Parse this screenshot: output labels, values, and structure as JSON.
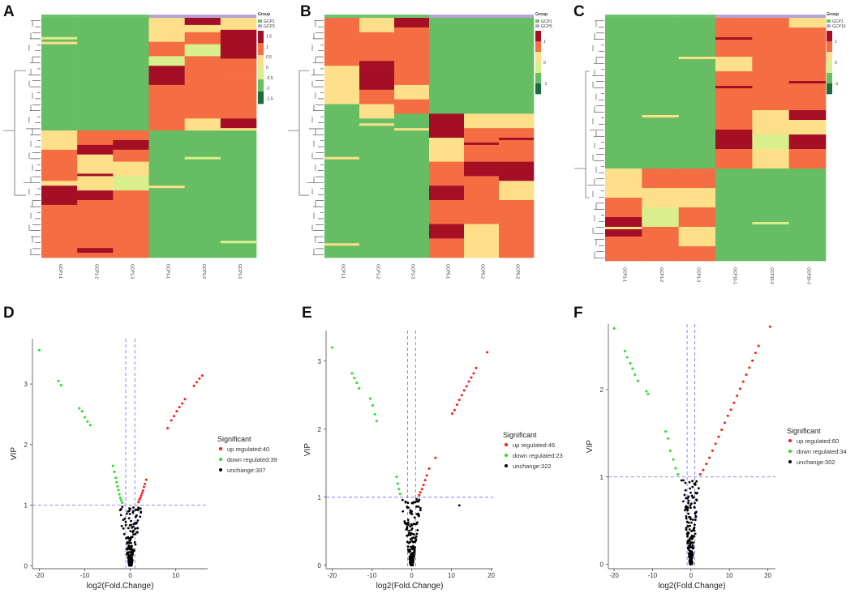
{
  "colors": {
    "up": "#ff1a1a",
    "down": "#22e022",
    "unchange": "#000000",
    "heat_high": "#a50f26",
    "heat_mid_high": "#f46d43",
    "heat_mid": "#fee08b",
    "heat_low_mid": "#d9ef8b",
    "heat_low": "#66bd63",
    "heat_lowest": "#1a6d3a",
    "group_a": "#6cc46c",
    "group_b": "#b8a4d4",
    "guide": "#6b6bff"
  },
  "chart_data": [
    {
      "panel": "A",
      "type": "heatmap",
      "columns": [
        "GCP1-1",
        "GCP1-2",
        "GCP1-3",
        "GCP3-1",
        "GCP3-2",
        "GCP3-3"
      ],
      "legend_title": "Group",
      "groups": [
        "GCP1",
        "GCP3"
      ],
      "scale_ticks": [
        "1.5",
        "1",
        "0.5",
        "0",
        "-0.5",
        "-1",
        "-1.5"
      ]
    },
    {
      "panel": "B",
      "type": "heatmap",
      "columns": [
        "GCP1-1",
        "GCP1-2",
        "GCP1-3",
        "GCP5-1",
        "GCP5-2",
        "GCP5-3"
      ],
      "legend_title": "Group",
      "groups": [
        "GCP1",
        "GCP5"
      ],
      "scale_ticks": [
        "1",
        "0",
        "-1"
      ]
    },
    {
      "panel": "C",
      "type": "heatmap",
      "columns": [
        "GCP1-1",
        "GCP1-2",
        "GCP1-3",
        "GCP10-1",
        "GCP10-2",
        "GCP10-3"
      ],
      "legend_title": "Group",
      "groups": [
        "GCP1",
        "GCP10"
      ],
      "scale_ticks": [
        "1",
        "0",
        "-1"
      ]
    },
    {
      "panel": "D",
      "type": "scatter",
      "xlabel": "log2(Fold.Change)",
      "ylabel": "VIP",
      "xlim": [
        -21.5,
        17
      ],
      "ylim": [
        -0.05,
        3.75
      ],
      "xticks": [
        -20,
        -10,
        0,
        10
      ],
      "yticks": [
        0,
        1,
        2,
        3
      ],
      "vlines": [
        -1,
        1
      ],
      "hline": 1,
      "legend_title": "Significant",
      "legend": [
        "up regulated:40",
        "down regulated:39",
        "unchange:307"
      ],
      "series": [
        {
          "name": "up regulated",
          "points": [
            [
              8.2,
              2.27
            ],
            [
              9.0,
              2.4
            ],
            [
              9.6,
              2.47
            ],
            [
              10.2,
              2.55
            ],
            [
              10.8,
              2.62
            ],
            [
              11.4,
              2.68
            ],
            [
              12.0,
              2.75
            ],
            [
              14.0,
              2.97
            ],
            [
              14.6,
              3.03
            ],
            [
              15.2,
              3.09
            ],
            [
              15.8,
              3.14
            ],
            [
              3.5,
              1.42
            ],
            [
              3.2,
              1.35
            ],
            [
              3.0,
              1.3
            ],
            [
              2.8,
              1.24
            ],
            [
              2.6,
              1.2
            ],
            [
              2.4,
              1.16
            ],
            [
              2.2,
              1.12
            ],
            [
              2.0,
              1.09
            ],
            [
              1.8,
              1.05
            ]
          ]
        },
        {
          "name": "down regulated",
          "points": [
            [
              -20.0,
              3.56
            ],
            [
              -15.8,
              3.05
            ],
            [
              -15.2,
              2.98
            ],
            [
              -11.2,
              2.6
            ],
            [
              -10.6,
              2.55
            ],
            [
              -10.0,
              2.45
            ],
            [
              -9.4,
              2.38
            ],
            [
              -8.8,
              2.32
            ],
            [
              -3.8,
              1.65
            ],
            [
              -3.5,
              1.55
            ],
            [
              -3.2,
              1.45
            ],
            [
              -3.0,
              1.38
            ],
            [
              -2.8,
              1.31
            ],
            [
              -2.6,
              1.25
            ],
            [
              -2.4,
              1.18
            ],
            [
              -2.2,
              1.12
            ],
            [
              -2.0,
              1.08
            ],
            [
              -1.8,
              1.04
            ]
          ]
        }
      ]
    },
    {
      "panel": "E",
      "type": "scatter",
      "xlabel": "log2(Fold.Change)",
      "ylabel": "VIP",
      "xlim": [
        -21.5,
        20.5
      ],
      "ylim": [
        -0.05,
        3.45
      ],
      "xticks": [
        -20,
        -10,
        0,
        10,
        20
      ],
      "yticks": [
        0,
        1,
        2,
        3
      ],
      "vlines": [
        -1,
        1
      ],
      "hline": 1,
      "legend_title": "Significant",
      "legend": [
        "up regulated:46",
        "down regulated:23",
        "unchange:322"
      ],
      "series": [
        {
          "name": "up regulated",
          "points": [
            [
              19.0,
              3.13
            ],
            [
              16.2,
              2.9
            ],
            [
              15.6,
              2.82
            ],
            [
              15.0,
              2.76
            ],
            [
              14.4,
              2.7
            ],
            [
              13.8,
              2.63
            ],
            [
              13.2,
              2.57
            ],
            [
              12.6,
              2.5
            ],
            [
              12.0,
              2.43
            ],
            [
              11.4,
              2.36
            ],
            [
              10.8,
              2.28
            ],
            [
              10.2,
              2.23
            ],
            [
              6.0,
              1.58
            ],
            [
              4.4,
              1.42
            ],
            [
              3.8,
              1.32
            ],
            [
              3.4,
              1.25
            ],
            [
              3.0,
              1.18
            ],
            [
              2.6,
              1.12
            ],
            [
              2.2,
              1.07
            ],
            [
              1.9,
              1.03
            ]
          ]
        },
        {
          "name": "down regulated",
          "points": [
            [
              -20.0,
              3.2
            ],
            [
              -15.0,
              2.82
            ],
            [
              -14.4,
              2.75
            ],
            [
              -13.8,
              2.68
            ],
            [
              -13.2,
              2.6
            ],
            [
              -10.4,
              2.45
            ],
            [
              -9.8,
              2.35
            ],
            [
              -9.2,
              2.22
            ],
            [
              -8.8,
              2.12
            ],
            [
              -3.8,
              1.3
            ],
            [
              -3.5,
              1.2
            ],
            [
              -3.2,
              1.12
            ],
            [
              -2.9,
              1.05
            ]
          ]
        }
      ]
    },
    {
      "panel": "F",
      "type": "scatter",
      "xlabel": "log2(Fold.Change)",
      "ylabel": "VIP",
      "xlim": [
        -21.5,
        22
      ],
      "ylim": [
        -0.05,
        2.75
      ],
      "xticks": [
        -20,
        -10,
        0,
        10,
        20
      ],
      "yticks": [
        0,
        1,
        2
      ],
      "vlines": [
        -1,
        1
      ],
      "hline": 1,
      "legend_title": "Significant",
      "legend": [
        "up regulated:60",
        "down regulated:34",
        "unchange:302"
      ],
      "series": [
        {
          "name": "up regulated",
          "points": [
            [
              20.6,
              2.72
            ],
            [
              17.6,
              2.5
            ],
            [
              16.8,
              2.42
            ],
            [
              16.0,
              2.33
            ],
            [
              15.2,
              2.25
            ],
            [
              14.4,
              2.17
            ],
            [
              13.6,
              2.09
            ],
            [
              12.8,
              2.01
            ],
            [
              12.0,
              1.93
            ],
            [
              11.2,
              1.85
            ],
            [
              10.4,
              1.77
            ],
            [
              9.6,
              1.7
            ],
            [
              8.8,
              1.62
            ],
            [
              8.0,
              1.54
            ],
            [
              7.2,
              1.46
            ],
            [
              6.4,
              1.38
            ],
            [
              5.6,
              1.3
            ],
            [
              4.8,
              1.22
            ],
            [
              4.0,
              1.15
            ],
            [
              3.2,
              1.08
            ],
            [
              2.4,
              1.03
            ]
          ]
        },
        {
          "name": "down regulated",
          "points": [
            [
              -20.0,
              2.7
            ],
            [
              -17.2,
              2.44
            ],
            [
              -16.6,
              2.37
            ],
            [
              -15.8,
              2.3
            ],
            [
              -15.2,
              2.24
            ],
            [
              -14.6,
              2.17
            ],
            [
              -13.8,
              2.1
            ],
            [
              -11.6,
              1.98
            ],
            [
              -11.2,
              1.95
            ],
            [
              -6.6,
              1.52
            ],
            [
              -6.0,
              1.44
            ],
            [
              -5.4,
              1.3
            ],
            [
              -4.6,
              1.2
            ],
            [
              -4.0,
              1.1
            ],
            [
              -3.4,
              1.03
            ]
          ]
        }
      ]
    }
  ]
}
